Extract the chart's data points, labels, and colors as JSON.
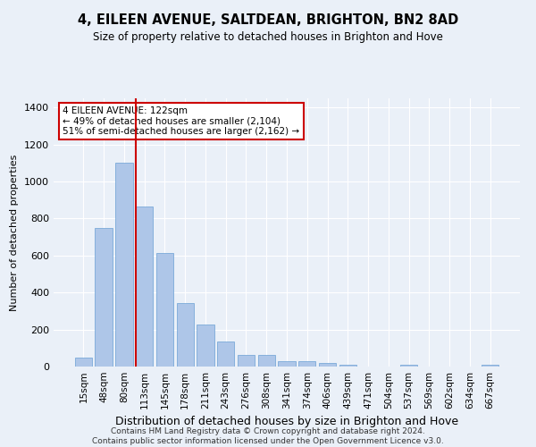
{
  "title": "4, EILEEN AVENUE, SALTDEAN, BRIGHTON, BN2 8AD",
  "subtitle": "Size of property relative to detached houses in Brighton and Hove",
  "xlabel": "Distribution of detached houses by size in Brighton and Hove",
  "ylabel": "Number of detached properties",
  "footer_line1": "Contains HM Land Registry data © Crown copyright and database right 2024.",
  "footer_line2": "Contains public sector information licensed under the Open Government Licence v3.0.",
  "categories": [
    "15sqm",
    "48sqm",
    "80sqm",
    "113sqm",
    "145sqm",
    "178sqm",
    "211sqm",
    "243sqm",
    "276sqm",
    "308sqm",
    "341sqm",
    "374sqm",
    "406sqm",
    "439sqm",
    "471sqm",
    "504sqm",
    "537sqm",
    "569sqm",
    "602sqm",
    "634sqm",
    "667sqm"
  ],
  "values": [
    48,
    750,
    1100,
    865,
    615,
    345,
    225,
    135,
    65,
    65,
    30,
    30,
    20,
    12,
    0,
    0,
    12,
    0,
    0,
    0,
    12
  ],
  "bar_color": "#aec6e8",
  "bar_edge_color": "#6aa0d4",
  "background_color": "#eaf0f8",
  "grid_color": "#ffffff",
  "vline_x_index": 3,
  "vline_color": "#cc0000",
  "annotation_line1": "4 EILEEN AVENUE: 122sqm",
  "annotation_line2": "← 49% of detached houses are smaller (2,104)",
  "annotation_line3": "51% of semi-detached houses are larger (2,162) →",
  "annotation_box_color": "#ffffff",
  "annotation_box_edge_color": "#cc0000",
  "ylim": [
    0,
    1450
  ],
  "yticks": [
    0,
    200,
    400,
    600,
    800,
    1000,
    1200,
    1400
  ],
  "title_fontsize": 10.5,
  "subtitle_fontsize": 8.5,
  "ylabel_fontsize": 8,
  "xlabel_fontsize": 9,
  "tick_fontsize": 8,
  "annotation_fontsize": 7.5,
  "footer_fontsize": 6.5
}
